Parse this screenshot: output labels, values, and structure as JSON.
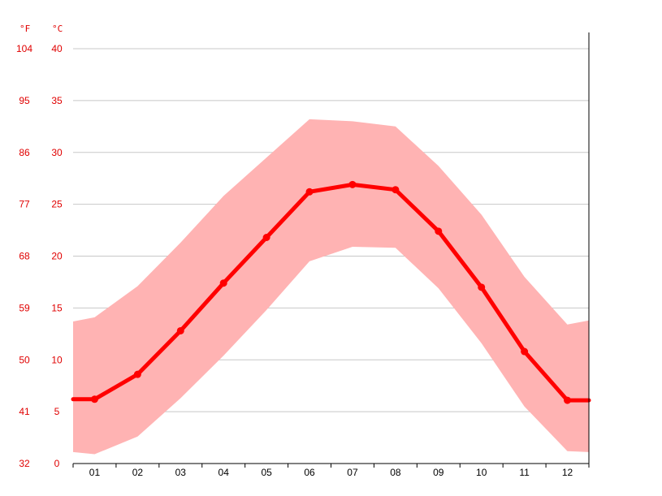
{
  "chart_data": {
    "type": "area",
    "x_categories": [
      "01",
      "02",
      "03",
      "04",
      "05",
      "06",
      "07",
      "08",
      "09",
      "10",
      "11",
      "12"
    ],
    "y_unit_left": "°F",
    "y_unit_right": "°C",
    "yticks_c": [
      0,
      5,
      10,
      15,
      20,
      25,
      30,
      35,
      40
    ],
    "yticks_c_labels": [
      "0",
      "5",
      "10",
      "15",
      "20",
      "25",
      "30",
      "35",
      "40"
    ],
    "yticks_f_labels": [
      "32",
      "41",
      "50",
      "59",
      "68",
      "77",
      "86",
      "95",
      "104"
    ],
    "ylim_c": [
      0,
      40
    ],
    "grid": true,
    "series": [
      {
        "values": [
          6.2,
          8.6,
          12.8,
          17.4,
          21.8,
          26.2,
          26.9,
          26.4,
          22.4,
          17.0,
          10.8,
          6.1
        ]
      }
    ],
    "range_band": {
      "high": [
        14.1,
        17.1,
        21.3,
        25.8,
        29.5,
        33.2,
        33.0,
        32.5,
        28.7,
        24.0,
        18.0,
        13.4
      ],
      "low": [
        0.9,
        2.6,
        6.3,
        10.4,
        14.8,
        19.5,
        20.9,
        20.8,
        16.9,
        11.6,
        5.5,
        1.2
      ],
      "edge_high": [
        13.7,
        13.8
      ],
      "edge_low": [
        1.1,
        1.1
      ]
    },
    "colors": {
      "line": "#ff0000",
      "band": "#ffb3b3",
      "grid": "#c8c8c8",
      "label": "#e00000",
      "axis": "#000000"
    }
  }
}
